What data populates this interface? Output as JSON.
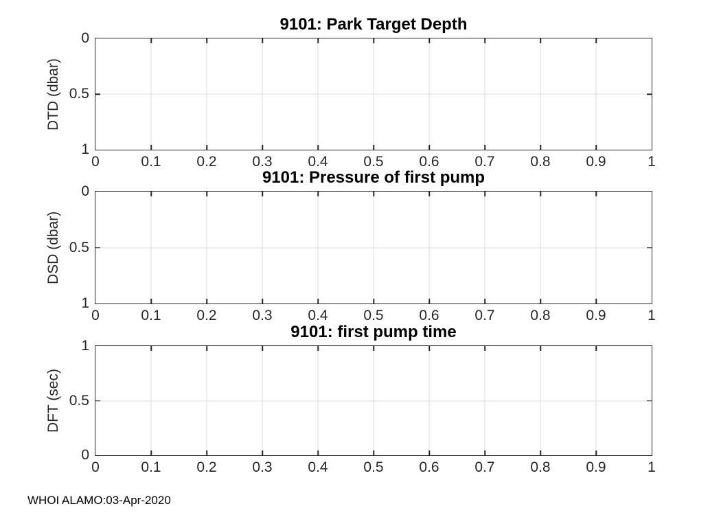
{
  "figure": {
    "background": "#ffffff",
    "footer": {
      "text": "WHOI ALAMO:03-Apr-2020"
    },
    "colors": {
      "axis": "#262626",
      "grid": "#dbdbdb",
      "title": "#000000",
      "tick_label": "#262626"
    }
  },
  "chart_data": [
    {
      "type": "line",
      "title": "9101: Park Target Depth",
      "xlabel": "",
      "ylabel": "DTD (dbar)",
      "xlim": [
        0,
        1
      ],
      "ylim": [
        0,
        1
      ],
      "y_axis_direction": "reverse",
      "xticks": [
        0,
        0.1,
        0.2,
        0.3,
        0.4,
        0.5,
        0.6,
        0.7,
        0.8,
        0.9,
        1
      ],
      "xtick_labels": [
        "0",
        "0.1",
        "0.2",
        "0.3",
        "0.4",
        "0.5",
        "0.6",
        "0.7",
        "0.8",
        "0.9",
        "1"
      ],
      "yticks": [
        0,
        0.5,
        1
      ],
      "ytick_labels": [
        "0",
        "0.5",
        "1"
      ],
      "grid": true,
      "series": []
    },
    {
      "type": "line",
      "title": "9101: Pressure of first pump",
      "xlabel": "",
      "ylabel": "DSD (dbar)",
      "xlim": [
        0,
        1
      ],
      "ylim": [
        0,
        1
      ],
      "y_axis_direction": "reverse",
      "xticks": [
        0,
        0.1,
        0.2,
        0.3,
        0.4,
        0.5,
        0.6,
        0.7,
        0.8,
        0.9,
        1
      ],
      "xtick_labels": [
        "0",
        "0.1",
        "0.2",
        "0.3",
        "0.4",
        "0.5",
        "0.6",
        "0.7",
        "0.8",
        "0.9",
        "1"
      ],
      "yticks": [
        0,
        0.5,
        1
      ],
      "ytick_labels": [
        "0",
        "0.5",
        "1"
      ],
      "grid": true,
      "series": []
    },
    {
      "type": "line",
      "title": "9101: first pump time",
      "xlabel": "",
      "ylabel": "DFT (sec)",
      "xlim": [
        0,
        1
      ],
      "ylim": [
        0,
        1
      ],
      "y_axis_direction": "normal",
      "xticks": [
        0,
        0.1,
        0.2,
        0.3,
        0.4,
        0.5,
        0.6,
        0.7,
        0.8,
        0.9,
        1
      ],
      "xtick_labels": [
        "0",
        "0.1",
        "0.2",
        "0.3",
        "0.4",
        "0.5",
        "0.6",
        "0.7",
        "0.8",
        "0.9",
        "1"
      ],
      "yticks": [
        0,
        0.5,
        1
      ],
      "ytick_labels": [
        "0",
        "0.5",
        "1"
      ],
      "grid": true,
      "series": []
    }
  ]
}
